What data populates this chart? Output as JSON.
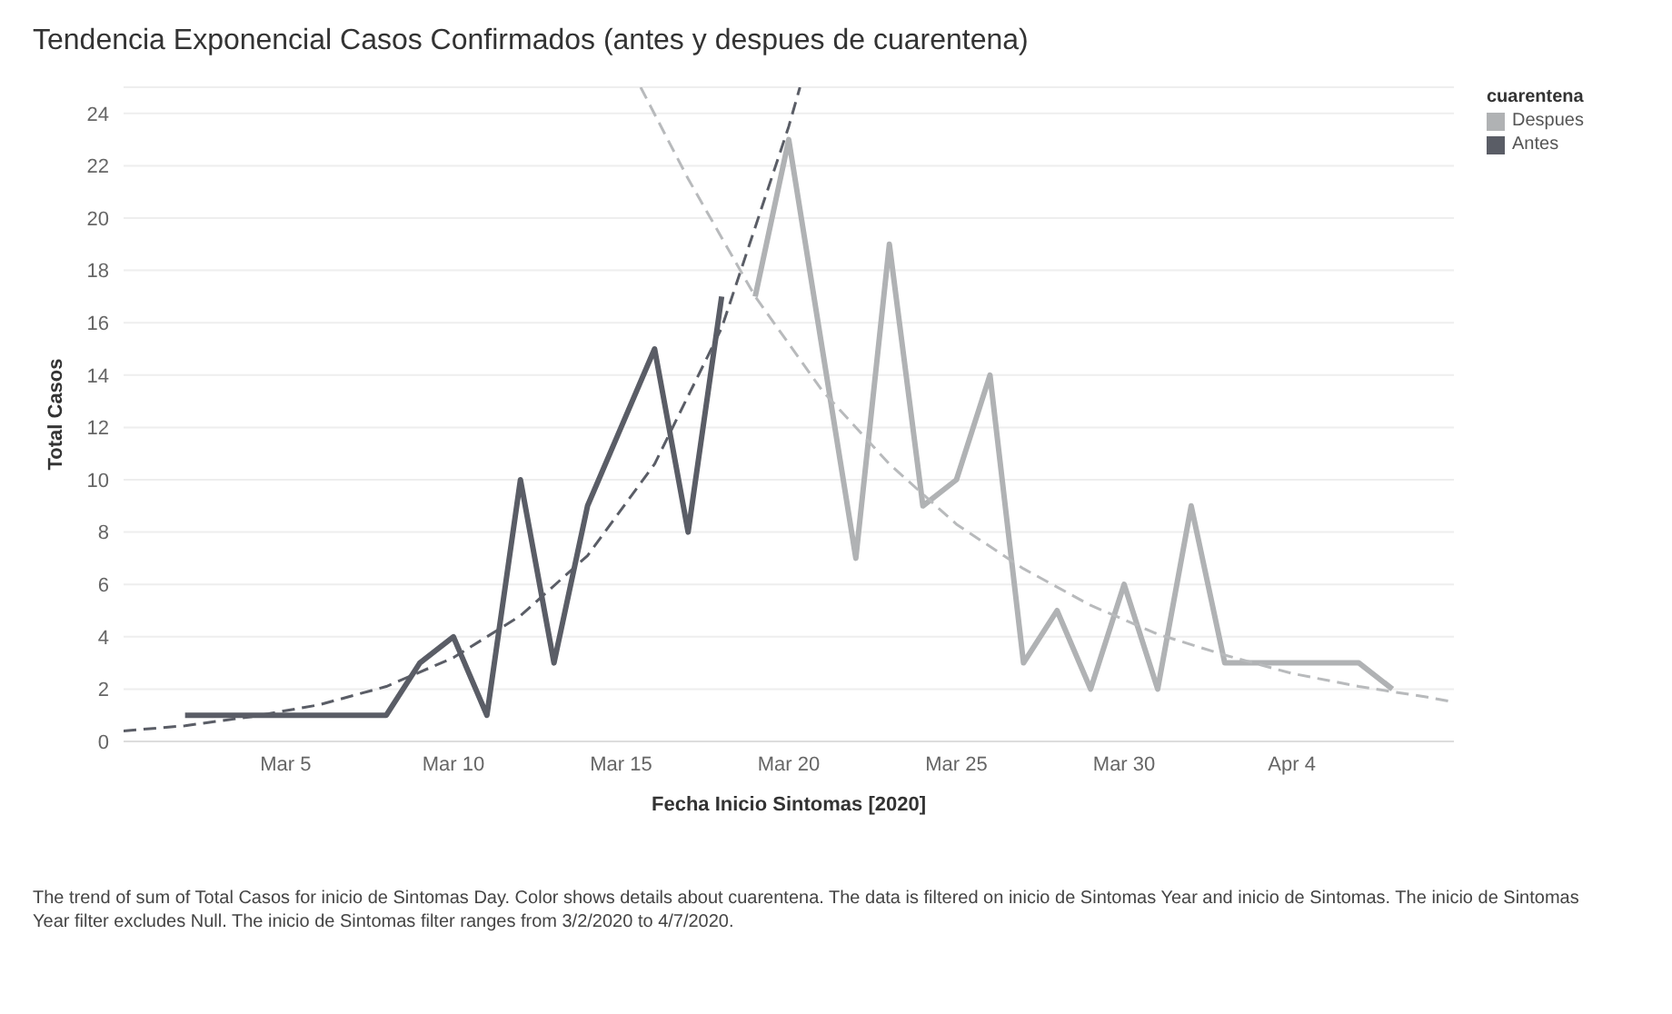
{
  "chart_data": {
    "type": "line",
    "title": "Tendencia Exponencial Casos Confirmados (antes y despues de cuarentena)",
    "xlabel": "Fecha Inicio Sintomas [2020]",
    "ylabel": "Total Casos",
    "legend_title": "cuarentena",
    "legend": "top right",
    "grid": "y",
    "xlim": [
      "2020-02-29T04:00",
      "2020-04-08T20:00"
    ],
    "xticks": [
      {
        "value": "2020-03-05",
        "label": "Mar 5"
      },
      {
        "value": "2020-03-10",
        "label": "Mar 10"
      },
      {
        "value": "2020-03-15",
        "label": "Mar 15"
      },
      {
        "value": "2020-03-20",
        "label": "Mar 20"
      },
      {
        "value": "2020-03-25",
        "label": "Mar 25"
      },
      {
        "value": "2020-03-30",
        "label": "Mar 30"
      },
      {
        "value": "2020-04-04",
        "label": "Apr 4"
      }
    ],
    "ylim": [
      0,
      25
    ],
    "yticks": [
      0,
      2,
      4,
      6,
      8,
      10,
      12,
      14,
      16,
      18,
      20,
      22,
      24
    ],
    "series": [
      {
        "name": "Despues",
        "color": "#b0b2b4",
        "x": [
          "2020-03-19",
          "2020-03-20",
          "2020-03-21",
          "2020-03-22",
          "2020-03-23",
          "2020-03-24",
          "2020-03-25",
          "2020-03-26",
          "2020-03-27",
          "2020-03-28",
          "2020-03-29",
          "2020-03-30",
          "2020-03-31",
          "2020-04-01",
          "2020-04-02",
          "2020-04-03",
          "2020-04-04",
          "2020-04-05",
          "2020-04-06",
          "2020-04-07"
        ],
        "values": [
          17,
          23,
          15,
          7,
          19,
          9,
          10,
          14,
          3,
          5,
          2,
          6,
          2,
          9,
          3,
          3,
          3,
          3,
          3,
          2
        ]
      },
      {
        "name": "Antes",
        "color": "#5a5d66",
        "x": [
          "2020-03-02",
          "2020-03-03",
          "2020-03-04",
          "2020-03-05",
          "2020-03-06",
          "2020-03-07",
          "2020-03-08",
          "2020-03-09",
          "2020-03-10",
          "2020-03-11",
          "2020-03-12",
          "2020-03-13",
          "2020-03-14",
          "2020-03-15",
          "2020-03-16",
          "2020-03-17",
          "2020-03-18"
        ],
        "values": [
          1,
          1,
          1,
          1,
          1,
          1,
          1,
          3,
          4,
          1,
          10,
          3,
          9,
          12,
          15,
          8,
          17
        ]
      },
      {
        "type": "line",
        "color": "#5a5d66",
        "line_style": "dashed",
        "x": [
          "2020-02-29T04:00",
          "2020-03-02",
          "2020-03-04",
          "2020-03-06",
          "2020-03-08",
          "2020-03-10",
          "2020-03-12",
          "2020-03-14",
          "2020-03-16",
          "2020-03-18",
          "2020-03-20",
          "2020-03-20T08:00"
        ],
        "values": [
          0.4,
          0.6,
          0.95,
          1.4,
          2.1,
          3.2,
          4.8,
          7.1,
          10.6,
          15.8,
          23.5,
          25
        ]
      },
      {
        "type": "line",
        "color": "#b8babc",
        "line_style": "dashed",
        "x": [
          "2020-03-15T14:00",
          "2020-03-17",
          "2020-03-19",
          "2020-03-21",
          "2020-03-23",
          "2020-03-25",
          "2020-03-27",
          "2020-03-29",
          "2020-03-31",
          "2020-04-02",
          "2020-04-04",
          "2020-04-06",
          "2020-04-08",
          "2020-04-08T20:00"
        ],
        "values": [
          25,
          21.5,
          17,
          13.4,
          10.6,
          8.3,
          6.6,
          5.2,
          4.1,
          3.3,
          2.6,
          2.1,
          1.7,
          1.5
        ]
      }
    ],
    "annotations": [
      "The trend of sum of Total Casos for inicio de Sintomas Day.  Color shows details about cuarentena. The data is filtered on inicio de Sintomas Year and inicio de Sintomas. The inicio de Sintomas Year filter excludes Null. The inicio de Sintomas filter ranges from 3/2/2020 to 4/7/2020."
    ]
  }
}
